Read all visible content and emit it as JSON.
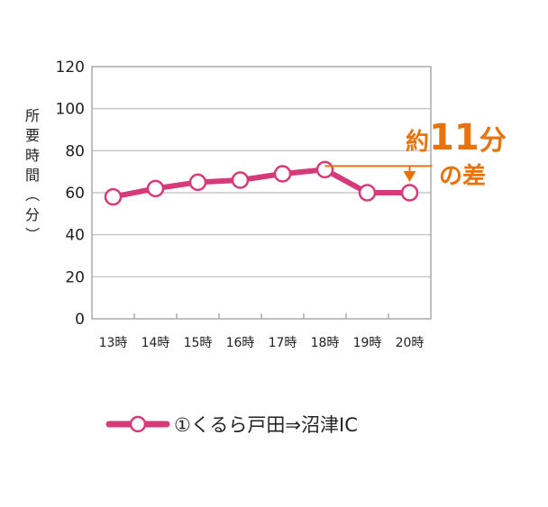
{
  "chart_data": {
    "type": "line",
    "categories": [
      "13時",
      "14時",
      "15時",
      "16時",
      "17時",
      "18時",
      "19時",
      "20時"
    ],
    "series": [
      {
        "name": "①くるら戸田⇒沼津IC",
        "values": [
          58,
          62,
          65,
          66,
          69,
          71,
          60,
          60
        ]
      }
    ],
    "ylim": [
      0,
      120
    ],
    "yticks": [
      0,
      20,
      40,
      60,
      80,
      100,
      120
    ],
    "ylabel": "所要時間（分）",
    "grid": true,
    "annotation": {
      "prefix": "約",
      "value": "11",
      "unit": "分",
      "suffix": "の差"
    },
    "colors": {
      "series": "#d63a78",
      "annotation": "#e8730c",
      "grid": "#c8c8c8",
      "frame": "#aaaaaa"
    },
    "legend_position": "bottom"
  }
}
